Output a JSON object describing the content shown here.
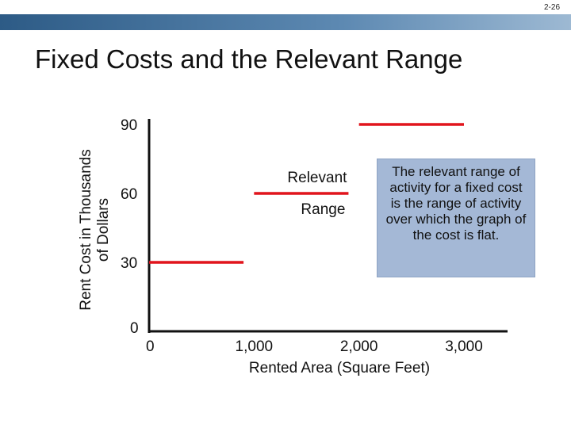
{
  "slide_number": "2-26",
  "title": "Fixed Costs and the Relevant Range",
  "callout_text": "The relevant range of activity for a fixed cost is the range of activity over which the graph of the cost is flat.",
  "colors": {
    "step_line": "#e1141c",
    "axis": "#111111",
    "callout_bg": "#a4b8d6",
    "header_bar": "#2d5b86"
  },
  "chart_data": {
    "type": "line",
    "title": "Fixed Costs and the Relevant Range",
    "xlabel": "Rented Area (Square Feet)",
    "ylabel_lines": [
      "Rent Cost in Thousands",
      "of Dollars"
    ],
    "x_ticks": [
      "1,000",
      "2,000",
      "3,000"
    ],
    "x_ticks_values": [
      1000,
      2000,
      3000
    ],
    "x_origin_label": "0",
    "y_ticks": [
      "90",
      "60",
      "30"
    ],
    "y_ticks_values": [
      90,
      60,
      30
    ],
    "y_origin_label": "0",
    "xlim": [
      0,
      3200
    ],
    "ylim": [
      0,
      100
    ],
    "series": [
      {
        "segments": [
          {
            "x": [
              0,
              900
            ],
            "y": [
              30,
              30
            ]
          },
          {
            "x": [
              1000,
              1900
            ],
            "y": [
              60,
              60
            ]
          },
          {
            "x": [
              2000,
              3000
            ],
            "y": [
              90,
              90
            ]
          }
        ]
      }
    ],
    "annotation": {
      "lines": [
        "Relevant",
        "Range"
      ]
    },
    "grid": false,
    "legend": "none"
  }
}
